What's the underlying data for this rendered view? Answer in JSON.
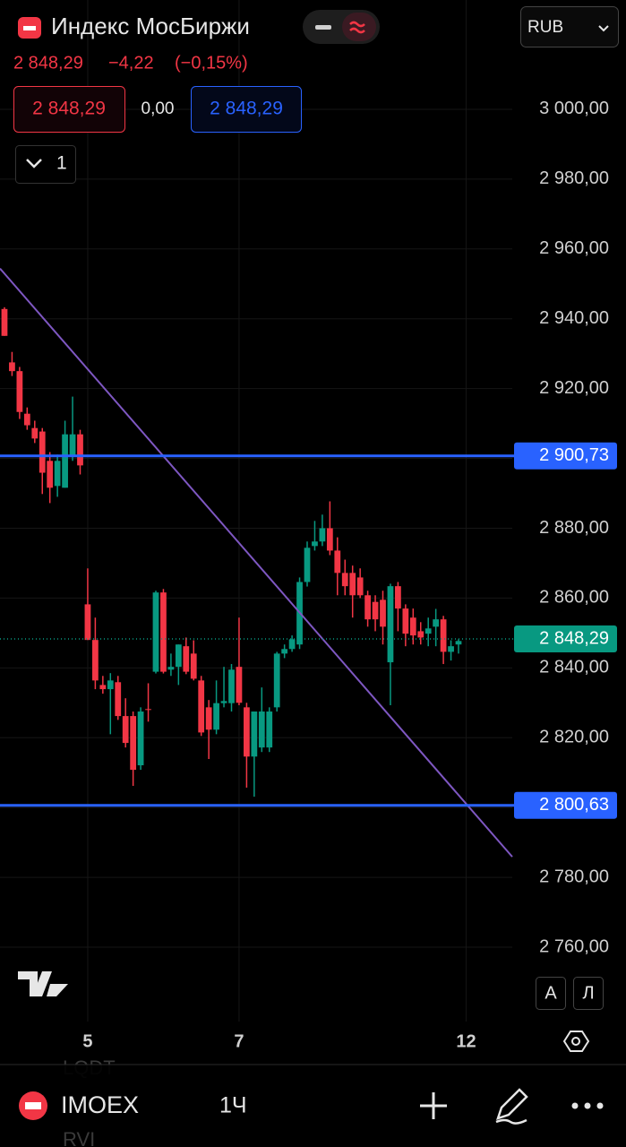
{
  "header": {
    "title": "Индекс МосБиржи",
    "currency": "RUB",
    "price": "2 848,29",
    "change": "−4,22",
    "change_percent": "(−0,15%)",
    "bid": "2 848,29",
    "spread": "0,00",
    "ask": "2 848,29",
    "indicators_count": "1"
  },
  "chart_data": {
    "type": "candlestick",
    "up_color": "#089981",
    "down_color": "#f23645",
    "grid": true,
    "x": [
      0,
      1,
      2,
      3,
      4,
      5,
      6,
      7,
      8,
      9,
      10,
      11,
      12,
      13,
      14,
      15,
      16,
      17,
      18,
      19,
      20,
      21,
      22,
      23,
      24,
      25,
      26,
      27,
      28,
      29,
      30,
      31,
      32,
      33,
      34,
      35,
      36,
      37,
      38,
      39,
      40,
      41,
      42,
      43,
      44,
      45,
      46,
      47,
      48,
      49,
      50,
      51,
      52,
      53,
      54,
      55,
      56,
      57,
      58,
      59,
      60
    ],
    "open": [
      2942.8,
      2927.5,
      2925.0,
      2912.8,
      2908.7,
      2907.7,
      2899.3,
      2892.1,
      2891.6,
      2900.5,
      2906.9,
      2858.2,
      2848.0,
      2835.1,
      2833.9,
      2835.9,
      2826.2,
      2826.2,
      2812.1,
      2828.2,
      2838.9,
      2861.6,
      2839.5,
      2840.3,
      2846.2,
      2844.1,
      2836.4,
      2828.7,
      2822.3,
      2829.9,
      2829.9,
      2840.3,
      2828.7,
      2814.6,
      2817.2,
      2817.2,
      2828.7,
      2844.1,
      2845.4,
      2846.7,
      2864.6,
      2874.9,
      2876.2,
      2880.0,
      2873.6,
      2867.2,
      2867.2,
      2865.9,
      2860.8,
      2858.9,
      2859.5,
      2841.6,
      2863.4,
      2857.0,
      2854.4,
      2850.5,
      2849.8,
      2851.8,
      2853.9,
      2844.6,
      2846.7
    ],
    "high": [
      2943.3,
      2930.5,
      2926.2,
      2914.6,
      2910.8,
      2908.7,
      2901.8,
      2901.1,
      2910.8,
      2917.7,
      2908.2,
      2868.5,
      2854.4,
      2837.7,
      2838.5,
      2837.7,
      2831.3,
      2827.5,
      2828.7,
      2835.6,
      2862.1,
      2862.6,
      2844.1,
      2846.7,
      2848.7,
      2847.9,
      2837.7,
      2830.8,
      2836.4,
      2840.3,
      2841.1,
      2854.4,
      2830.0,
      2827.5,
      2834.4,
      2828.7,
      2844.6,
      2846.7,
      2849.3,
      2865.9,
      2876.2,
      2882.1,
      2883.9,
      2887.7,
      2877.4,
      2871.0,
      2869.3,
      2868.5,
      2862.1,
      2860.8,
      2862.1,
      2864.1,
      2864.6,
      2858.2,
      2857.0,
      2853.1,
      2854.4,
      2856.9,
      2854.9,
      2847.9,
      2848.2
    ],
    "low": [
      2935.1,
      2923.6,
      2911.3,
      2908.2,
      2904.4,
      2889.8,
      2887.2,
      2889.0,
      2891.6,
      2899.3,
      2895.4,
      2848.0,
      2833.9,
      2832.6,
      2821.0,
      2825.1,
      2817.2,
      2806.2,
      2810.8,
      2824.6,
      2838.4,
      2838.4,
      2837.7,
      2835.1,
      2838.2,
      2836.4,
      2820.5,
      2813.9,
      2821.0,
      2828.7,
      2827.5,
      2829.3,
      2805.7,
      2803.1,
      2815.9,
      2815.9,
      2827.5,
      2842.8,
      2844.6,
      2845.4,
      2863.3,
      2873.6,
      2874.9,
      2872.3,
      2860.8,
      2860.8,
      2854.4,
      2860.0,
      2851.8,
      2850.5,
      2846.7,
      2829.3,
      2850.5,
      2846.2,
      2846.7,
      2846.7,
      2846.2,
      2846.2,
      2841.1,
      2842.1,
      2844.1
    ],
    "close": [
      2935.1,
      2925.0,
      2913.3,
      2909.5,
      2905.7,
      2895.9,
      2891.6,
      2899.3,
      2906.9,
      2906.9,
      2898.0,
      2848.0,
      2836.4,
      2833.9,
      2836.4,
      2826.2,
      2818.5,
      2810.8,
      2827.5,
      2828.0,
      2861.6,
      2838.9,
      2840.3,
      2846.7,
      2838.9,
      2836.9,
      2821.5,
      2822.3,
      2829.9,
      2830.5,
      2839.5,
      2830.0,
      2814.6,
      2827.5,
      2827.5,
      2827.5,
      2844.1,
      2845.4,
      2848.2,
      2864.6,
      2874.4,
      2876.2,
      2880.0,
      2873.6,
      2867.2,
      2863.4,
      2860.8,
      2860.8,
      2853.9,
      2853.9,
      2851.8,
      2863.4,
      2857.0,
      2849.8,
      2849.3,
      2848.7,
      2851.3,
      2853.9,
      2844.6,
      2846.2,
      2847.7
    ],
    "xlim": [
      -0.59,
      67.1
    ],
    "xticks": [
      {
        "value": 11,
        "label": "5"
      },
      {
        "value": 31,
        "label": "7"
      },
      {
        "value": 61,
        "label": "12"
      }
    ],
    "ylim": [
      2738.7,
      3031.3
    ],
    "yticks": [
      {
        "value": 3000,
        "label": "3 000,00"
      },
      {
        "value": 2980,
        "label": "2 980,00"
      },
      {
        "value": 2960,
        "label": "2 960,00"
      },
      {
        "value": 2940,
        "label": "2 940,00"
      },
      {
        "value": 2920,
        "label": "2 920,00"
      },
      {
        "value": 2900,
        "label": "2 900,00"
      },
      {
        "value": 2880,
        "label": "2 880,00"
      },
      {
        "value": 2860,
        "label": "2 860,00"
      },
      {
        "value": 2840,
        "label": "2 840,00"
      },
      {
        "value": 2820,
        "label": "2 820,00"
      },
      {
        "value": 2800,
        "label": "2 800,00"
      },
      {
        "value": 2780,
        "label": "2 780,00"
      },
      {
        "value": 2760,
        "label": "2 760,00"
      }
    ],
    "hlines": [
      {
        "value": 2900.73,
        "label": "2 900,73",
        "color": "#2962ff"
      },
      {
        "value": 2800.63,
        "label": "2 800,63",
        "color": "#2962ff"
      }
    ],
    "last_price": {
      "value": 2848.29,
      "label": "2 848,29",
      "color": "#089981"
    },
    "trendline": {
      "x": [
        -0.59,
        67.1
      ],
      "y": [
        2954.4,
        2785.9
      ],
      "color": "#7e57c2"
    }
  },
  "side_buttons": {
    "auto": "A",
    "log": "Л"
  },
  "background_symbols": [
    "LQDT",
    "RVI"
  ],
  "toolbar": {
    "symbol": "IMOEX",
    "interval": "1Ч"
  }
}
